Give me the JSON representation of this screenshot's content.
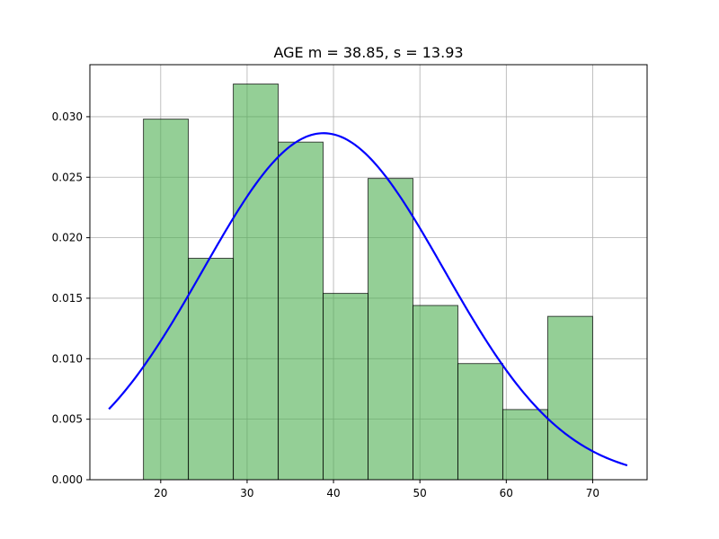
{
  "chart_data": {
    "type": "bar",
    "title": "AGE  m = 38.85,  s = 13.93",
    "xlabel": "",
    "ylabel": "",
    "xlim": [
      11.8,
      76.3
    ],
    "ylim": [
      0,
      0.0343
    ],
    "xticks": [
      20,
      30,
      40,
      50,
      60,
      70
    ],
    "yticks": [
      0.0,
      0.005,
      0.01,
      0.015,
      0.02,
      0.025,
      0.03
    ],
    "ytick_labels": [
      "0.000",
      "0.005",
      "0.010",
      "0.015",
      "0.020",
      "0.025",
      "0.030"
    ],
    "grid": true,
    "histogram": {
      "bin_edges": [
        18.0,
        23.2,
        28.4,
        33.6,
        38.8,
        44.0,
        49.2,
        54.4,
        59.6,
        64.8,
        70.0
      ],
      "density": [
        0.0298,
        0.0183,
        0.0327,
        0.0279,
        0.0154,
        0.0249,
        0.0144,
        0.0096,
        0.0058,
        0.0135
      ],
      "color": "#4caf50"
    },
    "normal_curve": {
      "mean": 38.85,
      "std": 13.93,
      "x_range": [
        14,
        74
      ],
      "color": "#0000ff"
    }
  }
}
